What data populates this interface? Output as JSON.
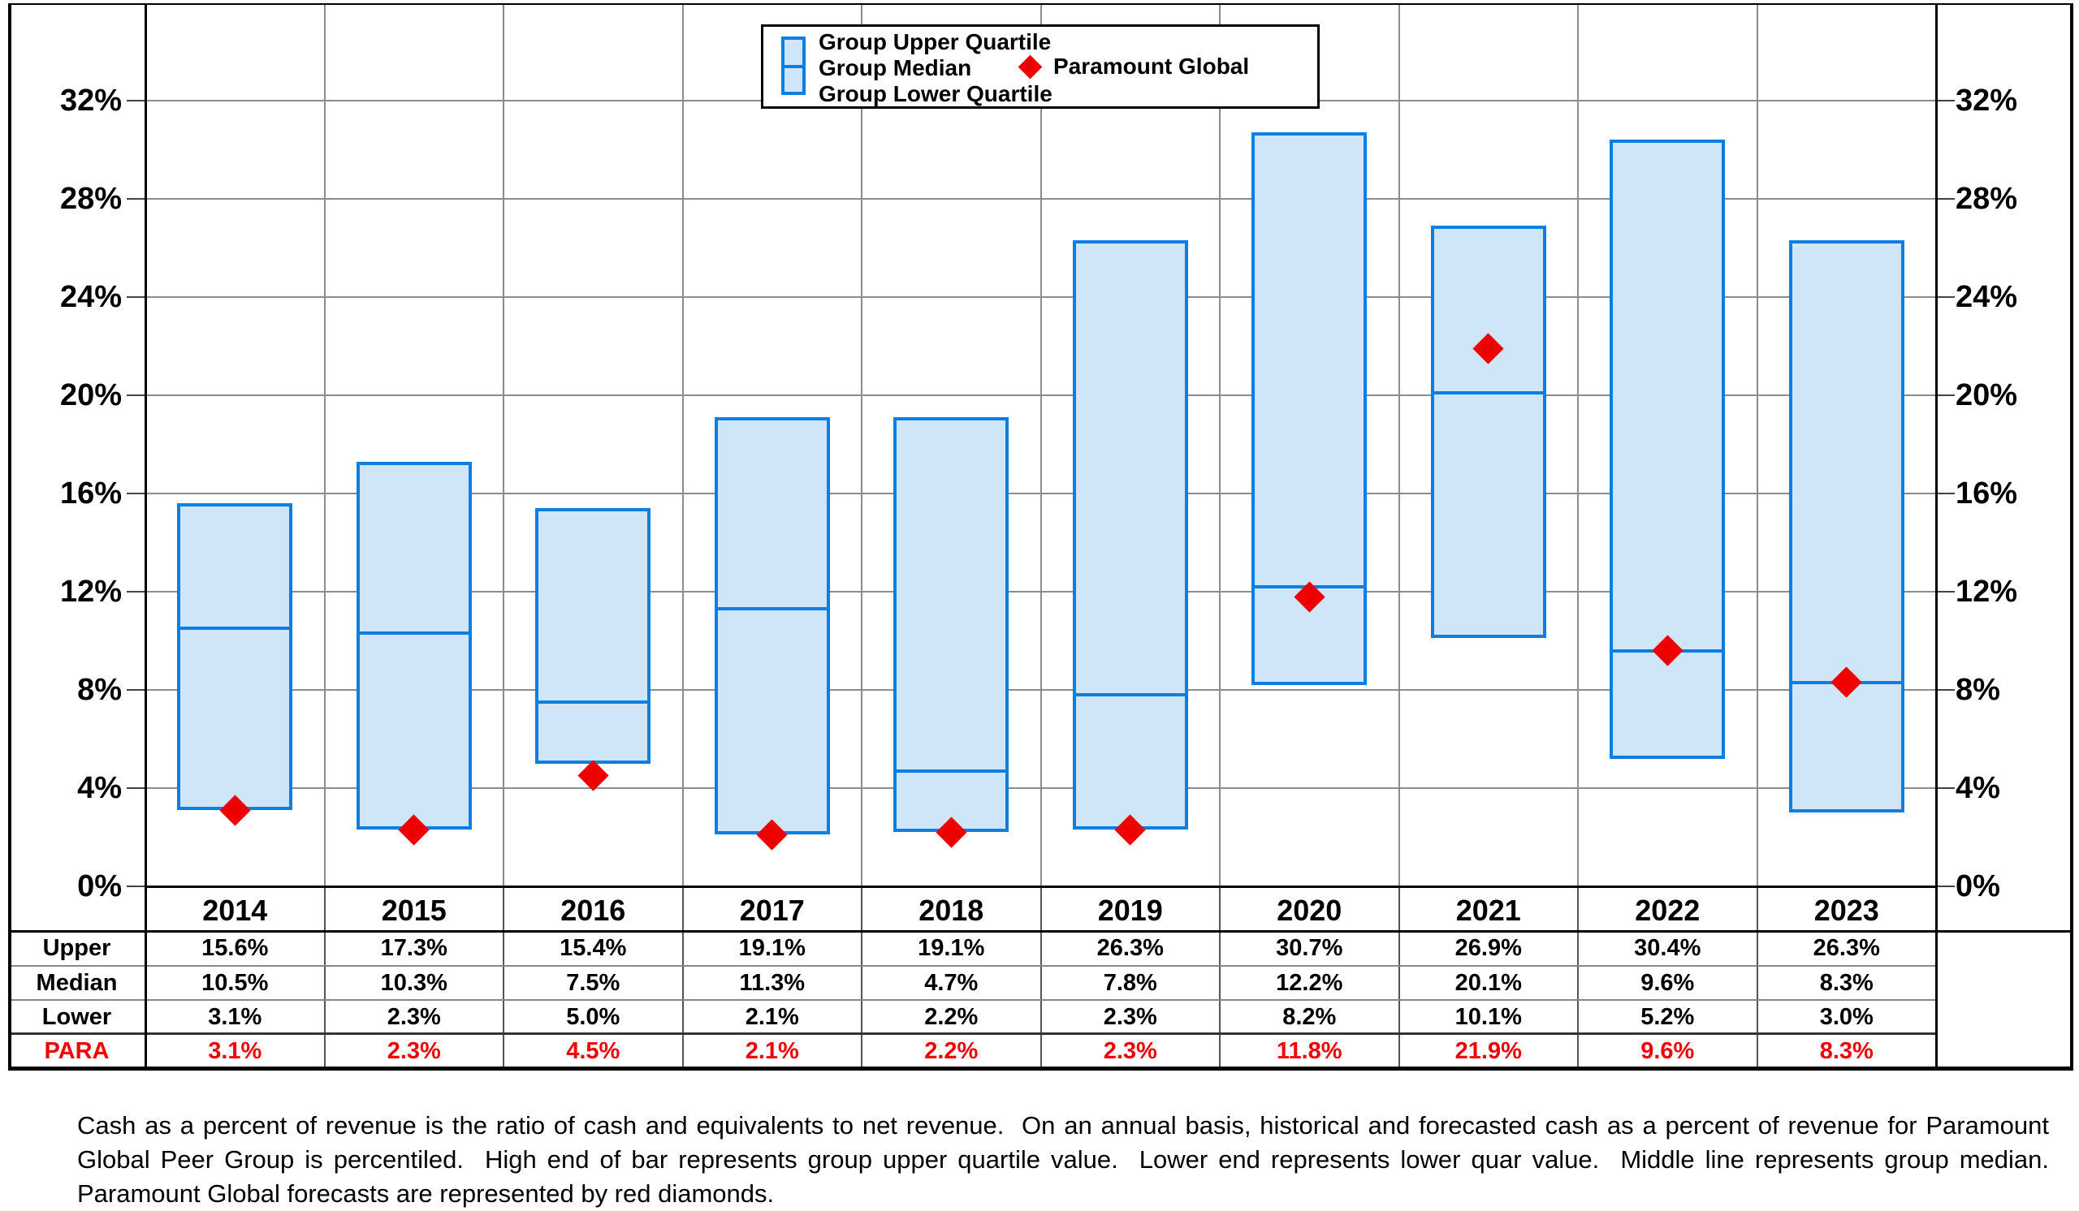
{
  "legend": {
    "items": [
      "Group Upper Quartile",
      "Group Median",
      "Group Lower Quartile"
    ],
    "paramount_label": "Paramount Global"
  },
  "chart_data": {
    "type": "bar",
    "subtype": "floating-quartile-range-bars-with-diamond-overlay",
    "title": "",
    "categories": [
      "2014",
      "2015",
      "2016",
      "2017",
      "2018",
      "2019",
      "2020",
      "2021",
      "2022",
      "2023"
    ],
    "series": [
      {
        "name": "Group Upper Quartile",
        "values": [
          15.6,
          17.3,
          15.4,
          19.1,
          19.1,
          26.3,
          30.7,
          26.9,
          30.4,
          26.3
        ]
      },
      {
        "name": "Group Median",
        "values": [
          10.5,
          10.3,
          7.5,
          11.3,
          4.7,
          7.8,
          12.2,
          20.1,
          9.6,
          8.3
        ]
      },
      {
        "name": "Group Lower Quartile",
        "values": [
          3.1,
          2.3,
          5.0,
          2.1,
          2.2,
          2.3,
          8.2,
          10.1,
          5.2,
          3.0
        ]
      },
      {
        "name": "Paramount Global",
        "marker": "diamond",
        "values": [
          3.1,
          2.3,
          4.5,
          2.1,
          2.2,
          2.3,
          11.8,
          21.9,
          9.6,
          8.3
        ]
      }
    ],
    "ylim": [
      0,
      36
    ],
    "ytick_values": [
      0,
      4,
      8,
      12,
      16,
      20,
      24,
      28,
      32
    ],
    "ytick_labels": [
      "0%",
      "4%",
      "8%",
      "12%",
      "16%",
      "20%",
      "24%",
      "28%",
      "32%"
    ],
    "y_axis_sides": "both",
    "grid": true,
    "legend_position": "top-center",
    "xlabel": "",
    "ylabel": ""
  },
  "table": {
    "rows": [
      {
        "label": "Upper",
        "values": [
          "15.6%",
          "17.3%",
          "15.4%",
          "19.1%",
          "19.1%",
          "26.3%",
          "30.7%",
          "26.9%",
          "30.4%",
          "26.3%"
        ],
        "red": false
      },
      {
        "label": "Median",
        "values": [
          "10.5%",
          "10.3%",
          "7.5%",
          "11.3%",
          "4.7%",
          "7.8%",
          "12.2%",
          "20.1%",
          "9.6%",
          "8.3%"
        ],
        "red": false
      },
      {
        "label": "Lower",
        "values": [
          "3.1%",
          "2.3%",
          "5.0%",
          "2.1%",
          "2.2%",
          "2.3%",
          "8.2%",
          "10.1%",
          "5.2%",
          "3.0%"
        ],
        "red": false
      },
      {
        "label": "PARA",
        "values": [
          "3.1%",
          "2.3%",
          "4.5%",
          "2.1%",
          "2.2%",
          "2.3%",
          "11.8%",
          "21.9%",
          "9.6%",
          "8.3%"
        ],
        "red": true
      }
    ]
  },
  "colors": {
    "bar_fill": "#CFE5F8",
    "bar_border": "#0E7FE2",
    "median_line": "#0E7FE2",
    "diamond": "#EE0000",
    "gridline": "#8C8C8C",
    "table_divider": "#555555",
    "frame": "#000000",
    "para_text": "#F40000"
  },
  "footnote": "Cash as a percent of revenue is the ratio of cash and equivalents to net revenue.  On an annual basis, historical and forecasted cash as a percent of revenue for Paramount Global Peer Group is percentiled.  High end of bar represents group upper quartile value.  Lower end represents lower quar value.  Middle line represents group median.  Paramount Global forecasts are represented by red diamonds."
}
